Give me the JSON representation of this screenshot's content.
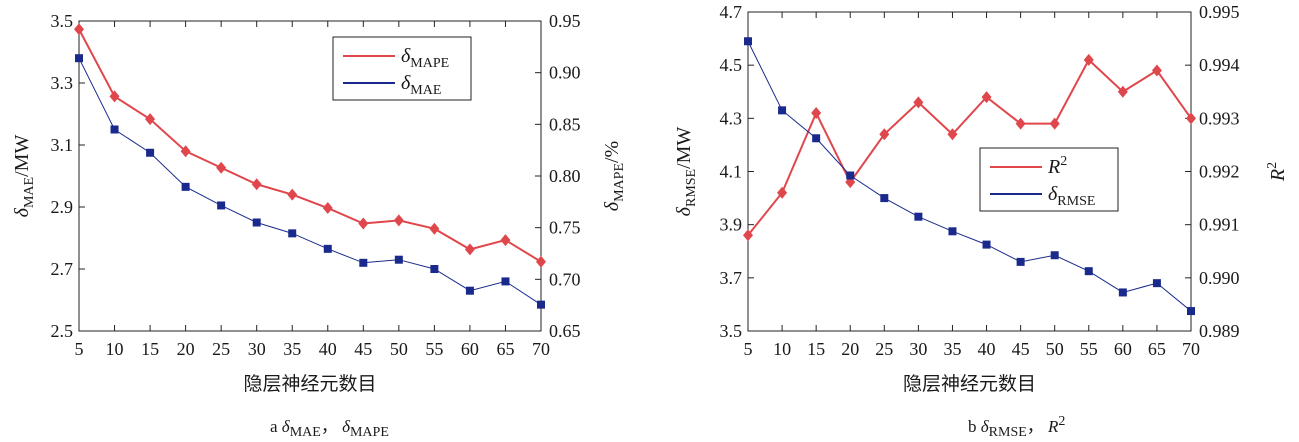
{
  "colors": {
    "red": "#e0474c",
    "blue": "#1a2a8c",
    "axis": "#222222"
  },
  "chart_data": [
    {
      "type": "line",
      "x": [
        5,
        10,
        15,
        20,
        25,
        30,
        35,
        40,
        45,
        50,
        55,
        60,
        65,
        70
      ],
      "xlabel": "隐层神经元数目",
      "xlim": [
        5,
        70
      ],
      "ylabel_left": {
        "sym": "δ",
        "sub": "MAE",
        "unit": "/MW"
      },
      "ylabel_right": {
        "sym": "δ",
        "sub": "MAPE",
        "unit": "/%"
      },
      "ylim_left": [
        2.5,
        3.5
      ],
      "ylim_right": [
        0.65,
        0.95
      ],
      "yticks_left": [
        "2.5",
        "2.7",
        "2.9",
        "3.1",
        "3.3",
        "3.5"
      ],
      "yticks_right": [
        "0.65",
        "0.70",
        "0.75",
        "0.80",
        "0.85",
        "0.90",
        "0.95"
      ],
      "legend_position": "top-right",
      "series": [
        {
          "name": {
            "sym": "δ",
            "sub": "MAPE"
          },
          "axis": "right",
          "color": "red",
          "marker": "diamond",
          "values": [
            0.942,
            0.877,
            0.855,
            0.824,
            0.808,
            0.792,
            0.782,
            0.769,
            0.754,
            0.757,
            0.749,
            0.729,
            0.738,
            0.717
          ]
        },
        {
          "name": {
            "sym": "δ",
            "sub": "MAE"
          },
          "axis": "left",
          "color": "blue",
          "marker": "square",
          "values": [
            3.38,
            3.15,
            3.075,
            2.965,
            2.905,
            2.85,
            2.815,
            2.765,
            2.72,
            2.73,
            2.7,
            2.63,
            2.66,
            2.585
          ]
        }
      ],
      "caption": {
        "letter": "a",
        "parts": [
          {
            "sym": "δ",
            "sub": "MAE"
          },
          {
            "sym": "δ",
            "sub": "MAPE"
          }
        ]
      }
    },
    {
      "type": "line",
      "x": [
        5,
        10,
        15,
        20,
        25,
        30,
        35,
        40,
        45,
        50,
        55,
        60,
        65,
        70
      ],
      "xlabel": "隐层神经元数目",
      "xlim": [
        5,
        70
      ],
      "ylabel_left": {
        "sym": "δ",
        "sub": "RMSE",
        "unit": "/MW"
      },
      "ylabel_right": {
        "sym": "R",
        "sup": "2"
      },
      "ylim_left": [
        3.5,
        4.7
      ],
      "ylim_right": [
        0.989,
        0.995
      ],
      "yticks_left": [
        "3.5",
        "3.7",
        "3.9",
        "4.1",
        "4.3",
        "4.5",
        "4.7"
      ],
      "yticks_right": [
        "0.989",
        "0.990",
        "0.991",
        "0.992",
        "0.993",
        "0.994",
        "0.995"
      ],
      "legend_position": "center-right",
      "series": [
        {
          "name": {
            "sym": "R",
            "sup": "2"
          },
          "axis": "right",
          "color": "red",
          "marker": "diamond",
          "values": [
            0.9908,
            0.9916,
            0.9931,
            0.9918,
            0.9927,
            0.9933,
            0.9927,
            0.9934,
            0.9929,
            0.9929,
            0.9941,
            0.9935,
            0.9939,
            0.993
          ]
        },
        {
          "name": {
            "sym": "δ",
            "sub": "RMSE"
          },
          "axis": "left",
          "color": "blue",
          "marker": "square",
          "values": [
            4.59,
            4.33,
            4.225,
            4.085,
            4.0,
            3.93,
            3.875,
            3.825,
            3.76,
            3.785,
            3.725,
            3.645,
            3.68,
            3.575
          ]
        }
      ],
      "caption": {
        "letter": "b",
        "parts": [
          {
            "sym": "δ",
            "sub": "RMSE"
          },
          {
            "sym": "R",
            "sup": "2"
          }
        ]
      }
    }
  ]
}
